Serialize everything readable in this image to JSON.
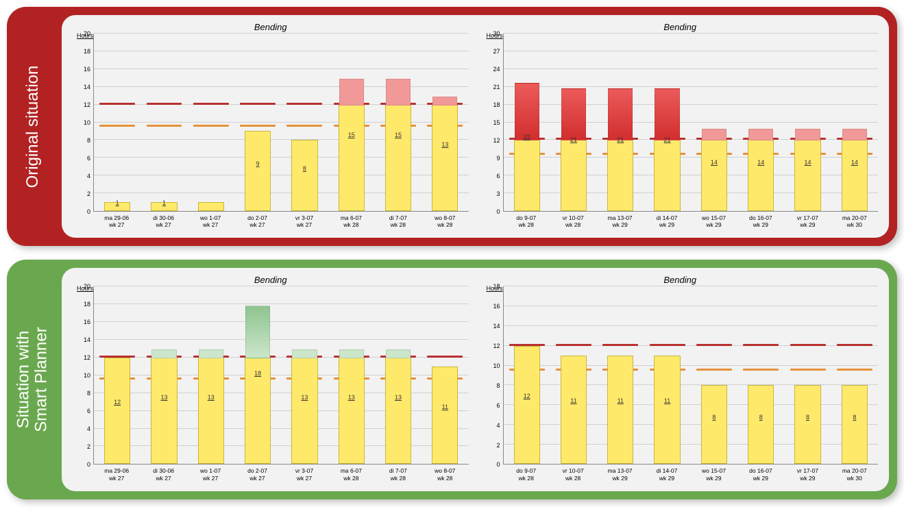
{
  "panels": [
    {
      "id": "original",
      "label": "Original situation",
      "panel_color": "#b22222",
      "charts": [
        {
          "title": "Bending",
          "y_axis_label": "Hours",
          "y_max": 20,
          "y_tick_step": 2,
          "red_line": 12,
          "orange_line": 9.5,
          "bar_color": "#ffe96b",
          "overflow_style": "red-light",
          "bars": [
            {
              "x1": "ma 29-06",
              "x2": "wk 27",
              "total": 1,
              "yellow": 1,
              "show_value": true
            },
            {
              "x1": "di 30-06",
              "x2": "wk 27",
              "total": 1,
              "yellow": 1,
              "show_value": true
            },
            {
              "x1": "wo 1-07",
              "x2": "wk 27",
              "total": 1,
              "yellow": 1,
              "show_value": false
            },
            {
              "x1": "do 2-07",
              "x2": "wk 27",
              "total": 9,
              "yellow": 9,
              "show_value": true
            },
            {
              "x1": "vr 3-07",
              "x2": "wk 27",
              "total": 8,
              "yellow": 8,
              "show_value": true
            },
            {
              "x1": "ma 6-07",
              "x2": "wk 28",
              "total": 15,
              "yellow": 12,
              "show_value": true
            },
            {
              "x1": "di 7-07",
              "x2": "wk 28",
              "total": 15,
              "yellow": 12,
              "show_value": true
            },
            {
              "x1": "wo 8-07",
              "x2": "wk 28",
              "total": 13,
              "yellow": 12,
              "show_value": true
            }
          ]
        },
        {
          "title": "Bending",
          "y_axis_label": "Hours",
          "y_max": 30,
          "y_tick_step": 3,
          "red_line": 12,
          "orange_line": 9.5,
          "bar_color": "#ffe96b",
          "overflow_style": "red-solid",
          "overflow_style_small": "red-light",
          "bars": [
            {
              "x1": "do 9-07",
              "x2": "wk 28",
              "total": 22,
              "yellow": 12,
              "show_value": true,
              "big": true
            },
            {
              "x1": "vr 10-07",
              "x2": "wk 28",
              "total": 21,
              "yellow": 12,
              "show_value": true,
              "big": true
            },
            {
              "x1": "ma 13-07",
              "x2": "wk 29",
              "total": 21,
              "yellow": 12,
              "show_value": true,
              "big": true
            },
            {
              "x1": "di 14-07",
              "x2": "wk 29",
              "total": 21,
              "yellow": 12,
              "show_value": true,
              "big": true
            },
            {
              "x1": "wo 15-07",
              "x2": "wk 29",
              "total": 14,
              "yellow": 12,
              "show_value": true
            },
            {
              "x1": "do 16-07",
              "x2": "wk 29",
              "total": 14,
              "yellow": 12,
              "show_value": true
            },
            {
              "x1": "vr 17-07",
              "x2": "wk 29",
              "total": 14,
              "yellow": 12,
              "show_value": true
            },
            {
              "x1": "ma 20-07",
              "x2": "wk 30",
              "total": 14,
              "yellow": 12,
              "show_value": true
            }
          ]
        }
      ]
    },
    {
      "id": "smart",
      "label": "Situation with\nSmart Planner",
      "panel_color": "#6aa84f",
      "charts": [
        {
          "title": "Bending",
          "y_axis_label": "Hours",
          "y_max": 20,
          "y_tick_step": 2,
          "red_line": 12,
          "orange_line": 9.5,
          "bar_color": "#ffe96b",
          "overflow_style": "green-light",
          "bars": [
            {
              "x1": "ma 29-06",
              "x2": "wk 27",
              "total": 12,
              "yellow": 12,
              "show_value": true
            },
            {
              "x1": "di 30-06",
              "x2": "wk 27",
              "total": 13,
              "yellow": 12,
              "show_value": true
            },
            {
              "x1": "wo 1-07",
              "x2": "wk 27",
              "total": 13,
              "yellow": 12,
              "show_value": true
            },
            {
              "x1": "do 2-07",
              "x2": "wk 27",
              "total": 18,
              "yellow": 12,
              "show_value": true,
              "big": true
            },
            {
              "x1": "vr 3-07",
              "x2": "wk 27",
              "total": 13,
              "yellow": 12,
              "show_value": true
            },
            {
              "x1": "ma 6-07",
              "x2": "wk 28",
              "total": 13,
              "yellow": 12,
              "show_value": true
            },
            {
              "x1": "di 7-07",
              "x2": "wk 28",
              "total": 13,
              "yellow": 12,
              "show_value": true
            },
            {
              "x1": "wo 8-07",
              "x2": "wk 28",
              "total": 11,
              "yellow": 11,
              "show_value": true
            }
          ]
        },
        {
          "title": "Bending",
          "y_axis_label": "Hours",
          "y_max": 18,
          "y_tick_step": 2,
          "red_line": 12,
          "orange_line": 9.5,
          "bar_color": "#ffe96b",
          "overflow_style": "green-light",
          "bars": [
            {
              "x1": "do 9-07",
              "x2": "wk 28",
              "total": 12,
              "yellow": 12,
              "show_value": true
            },
            {
              "x1": "vr 10-07",
              "x2": "wk 28",
              "total": 11,
              "yellow": 11,
              "show_value": true
            },
            {
              "x1": "ma 13-07",
              "x2": "wk 29",
              "total": 11,
              "yellow": 11,
              "show_value": true
            },
            {
              "x1": "di 14-07",
              "x2": "wk 29",
              "total": 11,
              "yellow": 11,
              "show_value": true
            },
            {
              "x1": "wo 15-07",
              "x2": "wk 29",
              "total": 8,
              "yellow": 8,
              "show_value": true
            },
            {
              "x1": "do 16-07",
              "x2": "wk 29",
              "total": 8,
              "yellow": 8,
              "show_value": true
            },
            {
              "x1": "vr 17-07",
              "x2": "wk 29",
              "total": 8,
              "yellow": 8,
              "show_value": true
            },
            {
              "x1": "ma 20-07",
              "x2": "wk 30",
              "total": 8,
              "yellow": 8,
              "show_value": true
            }
          ]
        }
      ]
    }
  ]
}
